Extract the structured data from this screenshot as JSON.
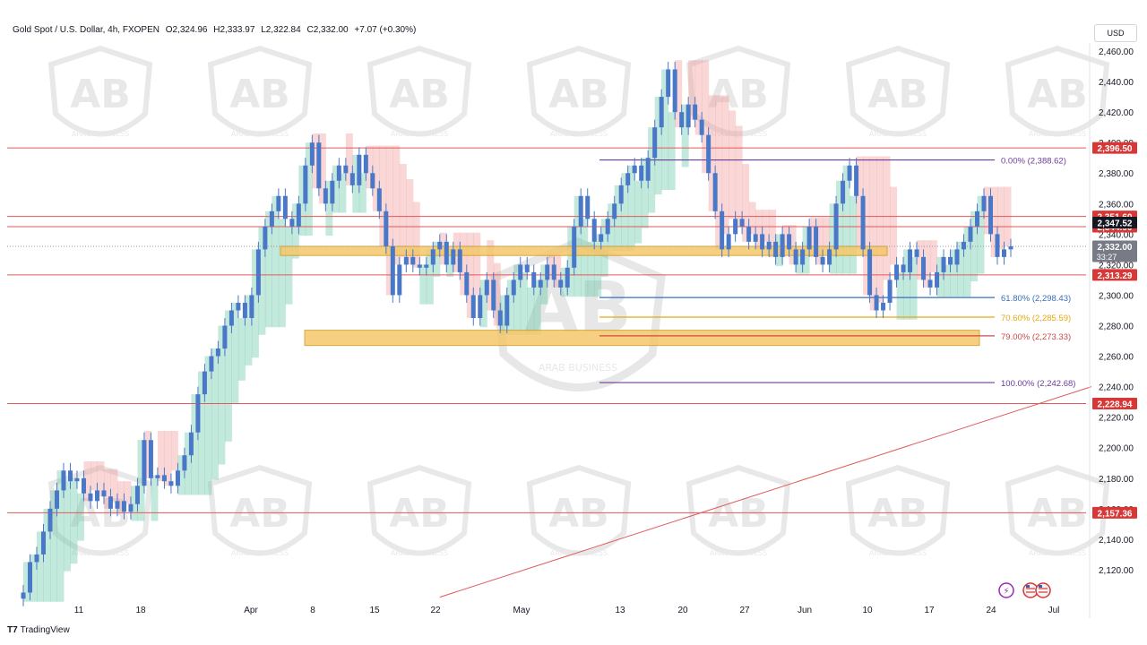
{
  "header": {
    "symbol": "Gold Spot / U.S. Dollar, 4h, FXOPEN",
    "open": "O2,324.96",
    "high": "H2,333.97",
    "low": "L2,322.84",
    "close": "C2,332.00",
    "change": "+7.07 (+0.30%)"
  },
  "currency": "USD",
  "branding": {
    "logo": "TradingView",
    "watermark_text": "ARAB BUSINESS"
  },
  "colors": {
    "candle": "#4a78c8",
    "resistance_line": "#e05a5a",
    "fib_purple": "#6a3d9a",
    "fib_blue": "#3a6fb8",
    "fib_orange": "#e6a817",
    "fib_red": "#c94b4b",
    "zone_fill": "#f5c76a",
    "zone_border": "#d49b1d",
    "cloud_red": "#f28b8b",
    "cloud_green": "#4fbf9a",
    "label_red": "#d93636",
    "label_black": "#131722",
    "label_gray": "#787b86"
  },
  "chart_data": {
    "type": "candlestick",
    "timeframe": "4h",
    "ylim": [
      2100,
      2470
    ],
    "y_ticks": [
      2120,
      2140,
      2160,
      2180,
      2200,
      2220,
      2240,
      2260,
      2280,
      2300,
      2320,
      2340,
      2360,
      2380,
      2400,
      2420,
      2440,
      2460
    ],
    "y_tick_labels": [
      "2,120.00",
      "2,140.00",
      "2,160.00",
      "2,180.00",
      "2,200.00",
      "2,220.00",
      "2,240.00",
      "2,260.00",
      "2,280.00",
      "2,300.00",
      "2,320.00",
      "2,340.00",
      "2,360.00",
      "2,380.00",
      "2,400.00",
      "2,420.00",
      "2,440.00",
      "2,460.00"
    ],
    "x_ticks": [
      "11",
      "18",
      "Apr",
      "8",
      "15",
      "22",
      "May",
      "13",
      "20",
      "27",
      "Jun",
      "10",
      "17",
      "24",
      "Jul"
    ],
    "price_path": [
      [
        0,
        2105
      ],
      [
        1,
        2125
      ],
      [
        2,
        2130
      ],
      [
        3,
        2145
      ],
      [
        4,
        2160
      ],
      [
        5,
        2172
      ],
      [
        6,
        2185
      ],
      [
        7,
        2178
      ],
      [
        8,
        2180
      ],
      [
        9,
        2170
      ],
      [
        10,
        2165
      ],
      [
        11,
        2172
      ],
      [
        12,
        2168
      ],
      [
        13,
        2160
      ],
      [
        14,
        2165
      ],
      [
        15,
        2158
      ],
      [
        16,
        2163
      ],
      [
        17,
        2175
      ],
      [
        18,
        2205
      ],
      [
        19,
        2180
      ],
      [
        20,
        2182
      ],
      [
        21,
        2178
      ],
      [
        22,
        2175
      ],
      [
        23,
        2185
      ],
      [
        24,
        2195
      ],
      [
        25,
        2210
      ],
      [
        26,
        2235
      ],
      [
        27,
        2250
      ],
      [
        28,
        2260
      ],
      [
        29,
        2265
      ],
      [
        30,
        2280
      ],
      [
        31,
        2290
      ],
      [
        32,
        2295
      ],
      [
        33,
        2285
      ],
      [
        34,
        2300
      ],
      [
        35,
        2330
      ],
      [
        36,
        2345
      ],
      [
        37,
        2355
      ],
      [
        38,
        2365
      ],
      [
        39,
        2350
      ],
      [
        40,
        2345
      ],
      [
        41,
        2360
      ],
      [
        42,
        2385
      ],
      [
        43,
        2400
      ],
      [
        44,
        2370
      ],
      [
        45,
        2360
      ],
      [
        46,
        2375
      ],
      [
        47,
        2385
      ],
      [
        48,
        2380
      ],
      [
        49,
        2372
      ],
      [
        50,
        2392
      ],
      [
        51,
        2380
      ],
      [
        52,
        2370
      ],
      [
        53,
        2355
      ],
      [
        54,
        2332
      ],
      [
        55,
        2300
      ],
      [
        56,
        2320
      ],
      [
        57,
        2325
      ],
      [
        58,
        2320
      ],
      [
        59,
        2318
      ],
      [
        60,
        2320
      ],
      [
        61,
        2330
      ],
      [
        62,
        2335
      ],
      [
        63,
        2320
      ],
      [
        64,
        2330
      ],
      [
        65,
        2315
      ],
      [
        66,
        2300
      ],
      [
        67,
        2285
      ],
      [
        68,
        2300
      ],
      [
        69,
        2310
      ],
      [
        70,
        2290
      ],
      [
        71,
        2280
      ],
      [
        72,
        2300
      ],
      [
        73,
        2310
      ],
      [
        74,
        2320
      ],
      [
        75,
        2315
      ],
      [
        76,
        2305
      ],
      [
        77,
        2310
      ],
      [
        78,
        2320
      ],
      [
        79,
        2310
      ],
      [
        80,
        2305
      ],
      [
        81,
        2318
      ],
      [
        82,
        2345
      ],
      [
        83,
        2365
      ],
      [
        84,
        2350
      ],
      [
        85,
        2335
      ],
      [
        86,
        2340
      ],
      [
        87,
        2350
      ],
      [
        88,
        2360
      ],
      [
        89,
        2372
      ],
      [
        90,
        2380
      ],
      [
        91,
        2385
      ],
      [
        92,
        2375
      ],
      [
        93,
        2390
      ],
      [
        94,
        2410
      ],
      [
        95,
        2430
      ],
      [
        96,
        2448
      ],
      [
        97,
        2420
      ],
      [
        98,
        2410
      ],
      [
        99,
        2425
      ],
      [
        100,
        2415
      ],
      [
        101,
        2405
      ],
      [
        102,
        2380
      ],
      [
        103,
        2355
      ],
      [
        104,
        2330
      ],
      [
        105,
        2340
      ],
      [
        106,
        2350
      ],
      [
        107,
        2345
      ],
      [
        108,
        2335
      ],
      [
        109,
        2340
      ],
      [
        110,
        2330
      ],
      [
        111,
        2335
      ],
      [
        112,
        2325
      ],
      [
        113,
        2340
      ],
      [
        114,
        2330
      ],
      [
        115,
        2320
      ],
      [
        116,
        2330
      ],
      [
        117,
        2345
      ],
      [
        118,
        2325
      ],
      [
        119,
        2320
      ],
      [
        120,
        2330
      ],
      [
        121,
        2360
      ],
      [
        122,
        2375
      ],
      [
        123,
        2385
      ],
      [
        124,
        2365
      ],
      [
        125,
        2330
      ],
      [
        126,
        2300
      ],
      [
        127,
        2290
      ],
      [
        128,
        2295
      ],
      [
        129,
        2310
      ],
      [
        130,
        2320
      ],
      [
        131,
        2315
      ],
      [
        132,
        2330
      ],
      [
        133,
        2325
      ],
      [
        134,
        2310
      ],
      [
        135,
        2305
      ],
      [
        136,
        2315
      ],
      [
        137,
        2325
      ],
      [
        138,
        2320
      ],
      [
        139,
        2330
      ],
      [
        140,
        2335
      ],
      [
        141,
        2345
      ],
      [
        142,
        2355
      ],
      [
        143,
        2365
      ],
      [
        144,
        2340
      ],
      [
        145,
        2325
      ],
      [
        146,
        2330
      ],
      [
        147,
        2332
      ]
    ],
    "horizontal_levels": [
      {
        "price": 2396.5,
        "label": "2,396.50"
      },
      {
        "price": 2351.6,
        "label": "2,351.60"
      },
      {
        "price": 2344.9,
        "label": "2,344.90"
      },
      {
        "price": 2313.29,
        "label": "2,313.29"
      },
      {
        "price": 2228.94,
        "label": "2,228.94"
      },
      {
        "price": 2157.36,
        "label": "2,157.36"
      }
    ],
    "price_labels": [
      {
        "price": 2347.52,
        "label": "2,347.52",
        "style": "black"
      },
      {
        "price": 2332.0,
        "label": "2,332.00",
        "sublabel": "33:27",
        "style": "gray"
      }
    ],
    "fibonacci": [
      {
        "text": "0.00% (2,388.62)",
        "price": 2388.62,
        "color": "fib_purple"
      },
      {
        "text": "61.80% (2,298.43)",
        "price": 2298.43,
        "color": "fib_blue"
      },
      {
        "text": "70.60% (2,285.59)",
        "price": 2285.59,
        "color": "fib_orange"
      },
      {
        "text": "79.00% (2,273.33)",
        "price": 2273.33,
        "color": "fib_red"
      },
      {
        "text": "100.00% (2,242.68)",
        "price": 2242.68,
        "color": "fib_purple"
      }
    ],
    "zones": [
      {
        "top": 2332,
        "bottom": 2326
      },
      {
        "top": 2277,
        "bottom": 2267
      }
    ],
    "trendline": {
      "from": [
        62,
        2102
      ],
      "to": [
        170,
        2240
      ]
    },
    "grid": false
  }
}
